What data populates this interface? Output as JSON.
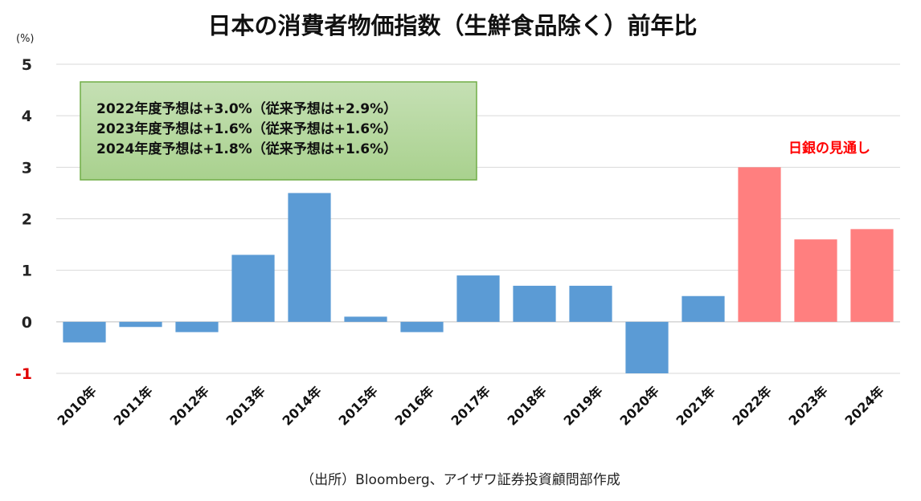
{
  "chart_data": {
    "type": "bar",
    "title": "日本の消費者物価指数（生鮮食品除く）前年比",
    "unit_label": "(%)",
    "categories": [
      "2010年",
      "2011年",
      "2012年",
      "2013年",
      "2014年",
      "2015年",
      "2016年",
      "2017年",
      "2018年",
      "2019年",
      "2020年",
      "2021年",
      "2022年",
      "2023年",
      "2024年"
    ],
    "values": [
      -0.4,
      -0.1,
      -0.2,
      1.3,
      2.5,
      0.1,
      -0.2,
      0.9,
      0.7,
      0.7,
      -1.0,
      0.5,
      3.0,
      1.6,
      1.8
    ],
    "forecast_from_index": 12,
    "forecast_label": "日銀の見通し",
    "ylim": [
      -1,
      5
    ],
    "yticks": [
      "-1",
      "0",
      "1",
      "2",
      "3",
      "4",
      "5"
    ],
    "colors": {
      "actual": "#5b9bd5",
      "forecast": "#ff7f7f"
    },
    "grid": true,
    "annotation": {
      "lines": [
        "2022年度予想は+3.0%（従来予想は+2.9%）",
        "2023年度予想は+1.6%（従来予想は+1.6%）",
        "2024年度予想は+1.8%（従来予想は+1.6%）"
      ],
      "fill": "#a9d18e",
      "border": "#70ad47"
    },
    "source": "（出所）Bloomberg、アイザワ証券投資顧問部作成"
  }
}
